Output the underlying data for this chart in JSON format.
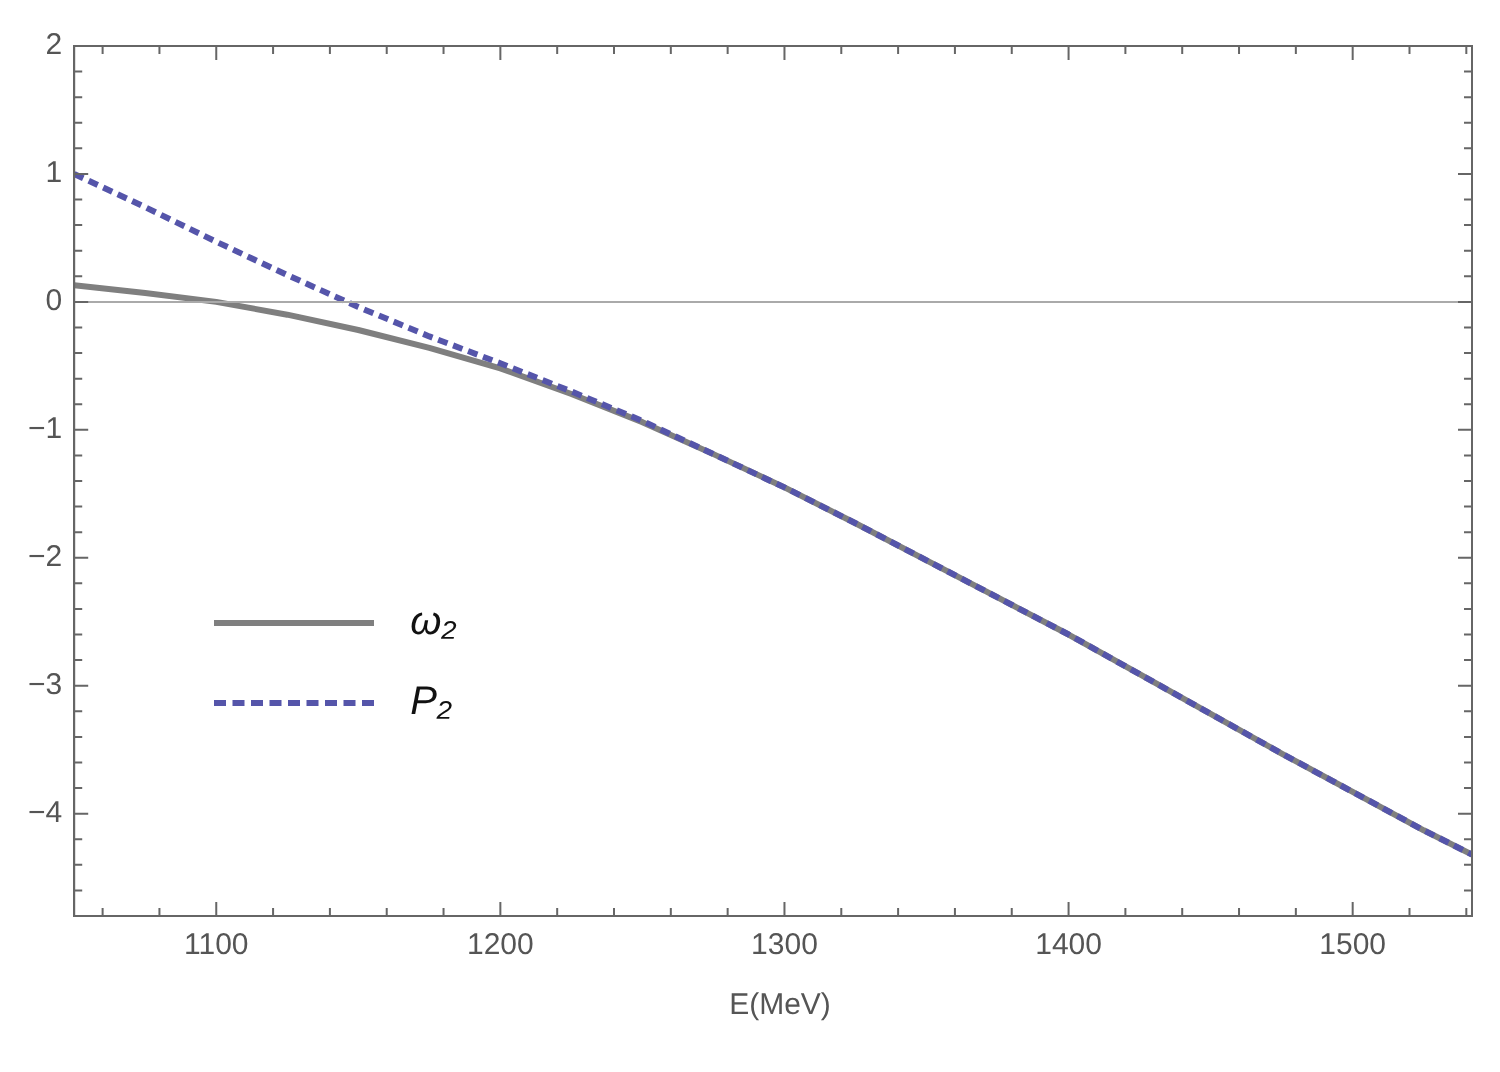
{
  "chart_data": {
    "type": "line",
    "xlabel": "E(MeV)",
    "xlim": [
      1050,
      1542
    ],
    "ylim": [
      -4.8,
      2
    ],
    "xticks": [
      {
        "value": 1060,
        "label": null
      },
      {
        "value": 1080,
        "label": null
      },
      1100,
      {
        "value": 1120,
        "label": null
      },
      {
        "value": 1140,
        "label": null
      },
      {
        "value": 1160,
        "label": null
      },
      {
        "value": 1180,
        "label": null
      },
      1200,
      {
        "value": 1220,
        "label": null
      },
      {
        "value": 1240,
        "label": null
      },
      {
        "value": 1260,
        "label": null
      },
      {
        "value": 1280,
        "label": null
      },
      1300,
      {
        "value": 1320,
        "label": null
      },
      {
        "value": 1340,
        "label": null
      },
      {
        "value": 1360,
        "label": null
      },
      {
        "value": 1380,
        "label": null
      },
      1400,
      {
        "value": 1420,
        "label": null
      },
      {
        "value": 1440,
        "label": null
      },
      {
        "value": 1460,
        "label": null
      },
      {
        "value": 1480,
        "label": null
      },
      1500,
      {
        "value": 1520,
        "label": null
      },
      {
        "value": 1540,
        "label": null
      }
    ],
    "yticks": [
      {
        "value": -4.6,
        "label": null
      },
      {
        "value": -4.4,
        "label": null
      },
      {
        "value": -4.2,
        "label": null
      },
      {
        "value": -4,
        "label": "−4"
      },
      {
        "value": -3.8,
        "label": null
      },
      {
        "value": -3.6,
        "label": null
      },
      {
        "value": -3.4,
        "label": null
      },
      {
        "value": -3.2,
        "label": null
      },
      {
        "value": -3,
        "label": "−3"
      },
      {
        "value": -2.8,
        "label": null
      },
      {
        "value": -2.6,
        "label": null
      },
      {
        "value": -2.4,
        "label": null
      },
      {
        "value": -2.2,
        "label": null
      },
      {
        "value": -2,
        "label": "−2"
      },
      {
        "value": -1.8,
        "label": null
      },
      {
        "value": -1.6,
        "label": null
      },
      {
        "value": -1.4,
        "label": null
      },
      {
        "value": -1.2,
        "label": null
      },
      {
        "value": -1,
        "label": "−1"
      },
      {
        "value": -0.8,
        "label": null
      },
      {
        "value": -0.6,
        "label": null
      },
      {
        "value": -0.4,
        "label": null
      },
      {
        "value": -0.2,
        "label": null
      },
      0,
      {
        "value": 0.2,
        "label": null
      },
      {
        "value": 0.4,
        "label": null
      },
      {
        "value": 0.6,
        "label": null
      },
      {
        "value": 0.8,
        "label": null
      },
      1,
      {
        "value": 1.2,
        "label": null
      },
      {
        "value": 1.4,
        "label": null
      },
      {
        "value": 1.6,
        "label": null
      },
      {
        "value": 1.8,
        "label": null
      },
      2
    ],
    "ref_lines": [
      {
        "axis": "y",
        "value": 0,
        "color": "#aaaaaa"
      }
    ],
    "legend": "bottom left",
    "grid": false,
    "marker": "none",
    "series": [
      {
        "name": "ω₂",
        "color": "#7f7f7f",
        "line_style": "solid",
        "x": [
          1050,
          1075,
          1100,
          1125,
          1150,
          1175,
          1200,
          1225,
          1250,
          1275,
          1300,
          1325,
          1350,
          1375,
          1400,
          1425,
          1450,
          1475,
          1500,
          1525,
          1542
        ],
        "values": [
          0.13,
          0.07,
          0.0,
          -0.1,
          -0.22,
          -0.36,
          -0.52,
          -0.72,
          -0.94,
          -1.19,
          -1.45,
          -1.73,
          -2.02,
          -2.31,
          -2.6,
          -2.91,
          -3.22,
          -3.53,
          -3.83,
          -4.13,
          -4.32
        ]
      },
      {
        "name": "P₂",
        "color": "#5555aa",
        "line_style": "dashed",
        "x": [
          1050,
          1075,
          1100,
          1125,
          1150,
          1175,
          1200,
          1225,
          1250,
          1275,
          1300,
          1325,
          1350,
          1375,
          1400,
          1425,
          1450,
          1475,
          1500,
          1525,
          1542
        ],
        "values": [
          1.0,
          0.74,
          0.47,
          0.21,
          -0.04,
          -0.27,
          -0.48,
          -0.7,
          -0.93,
          -1.19,
          -1.45,
          -1.73,
          -2.02,
          -2.31,
          -2.6,
          -2.91,
          -3.22,
          -3.53,
          -3.83,
          -4.13,
          -4.32
        ]
      }
    ]
  }
}
